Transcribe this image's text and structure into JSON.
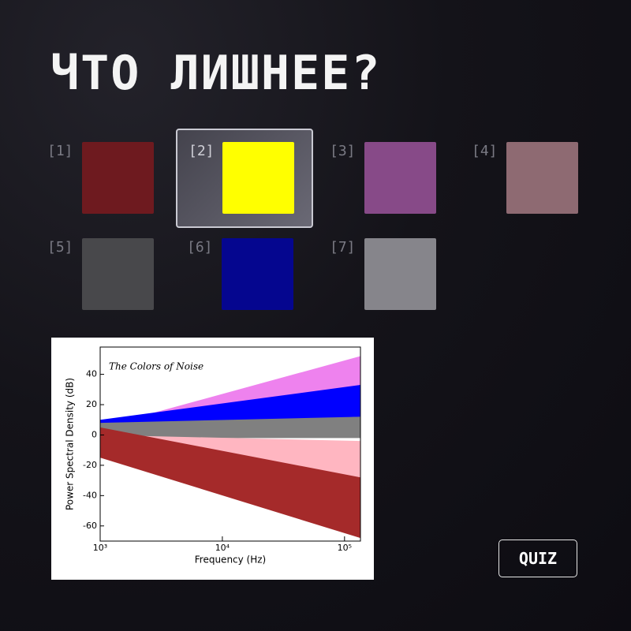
{
  "title": "ЧТО ЛИШНЕЕ?",
  "options": [
    {
      "label": "[1]",
      "color": "#6e1a1f"
    },
    {
      "label": "[2]",
      "color": "#ffff00",
      "selected": true
    },
    {
      "label": "[3]",
      "color": "#874a88"
    },
    {
      "label": "[4]",
      "color": "#8e6a72"
    },
    {
      "label": "[5]",
      "color": "#48484b"
    },
    {
      "label": "[6]",
      "color": "#05068f"
    },
    {
      "label": "[7]",
      "color": "#86858b"
    }
  ],
  "button": "QUIZ",
  "chart_data": {
    "type": "band",
    "title": "The Colors of Noise",
    "x_label": "Frequency (Hz)",
    "y_label": "Power Spectral Density (dB)",
    "x": [
      1000,
      135000
    ],
    "log_x": true,
    "series": [
      {
        "color": "#ee82ee",
        "values": [
          5,
          52
        ],
        "low": [
          0,
          30
        ]
      },
      {
        "color": "#0000ff",
        "values": [
          10,
          33
        ],
        "low": [
          3,
          12
        ]
      },
      {
        "color": "#808080",
        "values": [
          8,
          12
        ],
        "low": [
          -2,
          -2
        ]
      },
      {
        "color": "#ffb6c1",
        "values": [
          0,
          -4
        ],
        "low": [
          -5,
          -32
        ]
      },
      {
        "color": "#a52a2a",
        "values": [
          5,
          -28
        ],
        "low": [
          -15,
          -68
        ]
      }
    ],
    "xlim": [
      1000,
      135000
    ],
    "xticks": [
      {
        "value": 1000,
        "label": "10³"
      },
      {
        "value": 10000,
        "label": "10⁴"
      },
      {
        "value": 100000,
        "label": "10⁵"
      }
    ],
    "ylim": [
      -70,
      58
    ],
    "yticks": [
      40,
      20,
      0,
      -20,
      -40,
      -60
    ]
  }
}
